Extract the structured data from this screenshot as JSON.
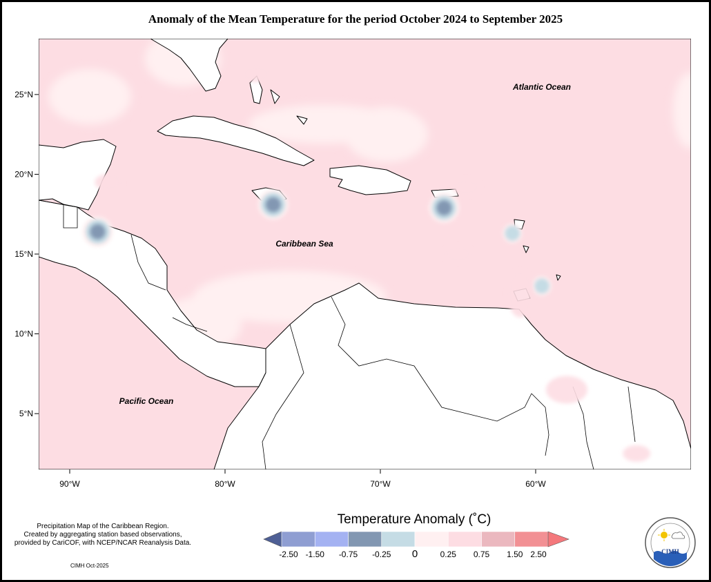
{
  "title": "Anomaly of the Mean Temperature for the period October 2024 to September 2025",
  "map": {
    "labels": {
      "atlantic": "Atlantic Ocean",
      "caribbean": "Caribbean Sea",
      "pacific": "Pacific Ocean"
    },
    "lon_ticks": [
      "90°W",
      "80°W",
      "70°W",
      "60°W"
    ],
    "lat_ticks": [
      "25°N",
      "20°N",
      "15°N",
      "10°N",
      "5°N"
    ],
    "extent": {
      "lon_min": -92,
      "lon_max": -50,
      "lat_min": 1.5,
      "lat_max": 28.5
    },
    "anomalies": [
      {
        "name": "jamaica",
        "lat": 18.1,
        "lon": -76.9,
        "value": -0.75
      },
      {
        "name": "belize-guatemala",
        "lat": 16.4,
        "lon": -88.2,
        "value": -0.75
      },
      {
        "name": "puerto-rico",
        "lat": 17.9,
        "lon": -65.9,
        "value": -0.75
      },
      {
        "name": "guadeloupe-dominica",
        "lat": 16.3,
        "lon": -61.5,
        "value": -0.25
      },
      {
        "name": "barbados",
        "lat": 13.0,
        "lon": -59.6,
        "value": -0.25
      },
      {
        "name": "trinidad-grenada",
        "lat": 12.5,
        "lon": -61.0,
        "value": 0.75
      },
      {
        "name": "guyana",
        "lat": 6.5,
        "lon": -58.0,
        "value": 0.75
      },
      {
        "name": "suriname-coast",
        "lat": 2.5,
        "lon": -53.5,
        "value": 0.75
      },
      {
        "name": "yucatan",
        "lat": 19.5,
        "lon": -87.5,
        "value": 0.75
      },
      {
        "name": "virgin-islands",
        "lat": 19.2,
        "lon": -64.5,
        "value": 0.75
      },
      {
        "name": "venezuela-east",
        "lat": 15.0,
        "lon": -65.0,
        "value": 0.75
      },
      {
        "name": "florida-east",
        "lat": 26.3,
        "lon": -78.0,
        "value": 0.75
      }
    ]
  },
  "legend": {
    "title": "Temperature Anomaly (˚C)",
    "tick_labels": [
      "-2.50",
      "-1.50",
      "-0.75",
      "-0.25",
      "0",
      "0.25",
      "0.75",
      "1.50",
      "2.50"
    ],
    "colors": {
      "lt_-2.50": "#4e5f95",
      "-2.50_-1.50": "#8f9ed2",
      "-1.50_-0.75": "#a4b2f2",
      "-0.75_-0.25": "#8297b2",
      "-0.25_0": "#c5dce5",
      "0_0.25": "#fff0f1",
      "0.25_0.75": "#fddde3",
      "0.75_1.50": "#ebb8bf",
      "1.50_2.50": "#f29094",
      "gt_2.50": "#f4787c"
    }
  },
  "footnote": {
    "lines": [
      "Precipitation Map of the Caribbean Region.",
      "Created by aggregating station based observations,",
      "provided by CariCOF, with NCEP/NCAR Reanalysis Data."
    ],
    "credit": "CIMH Oct-2025"
  },
  "logo": {
    "text": "CIMH",
    "name": "CIMH logo"
  }
}
